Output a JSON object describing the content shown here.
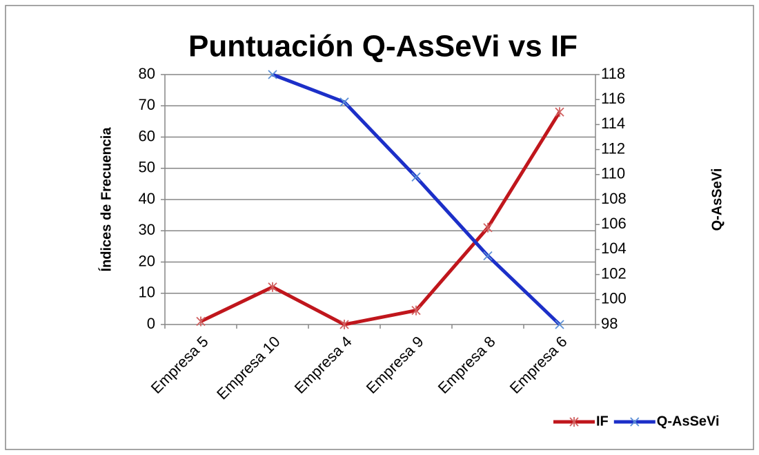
{
  "chart_data": {
    "type": "line",
    "title": "Puntuación Q-AsSeVi vs IF",
    "categories": [
      "Empresa 5",
      "Empresa 10",
      "Empresa 4",
      "Empresa 9",
      "Empresa 8",
      "Empresa 6"
    ],
    "series": [
      {
        "name": "IF",
        "color": "#c0161c",
        "values": [
          1,
          12,
          0,
          4.5,
          31,
          68
        ]
      },
      {
        "name": "Q-AsSeVi",
        "color": "#1c2fc8",
        "axis": "y2",
        "values": [
          null,
          118,
          115.8,
          109.8,
          103.5,
          98
        ]
      }
    ],
    "ylabel": "Índices de Frecuencia",
    "y2label": "Q-AsSeVi",
    "ylim": [
      0,
      80
    ],
    "yticks": [
      0,
      10,
      20,
      30,
      40,
      50,
      60,
      70,
      80
    ],
    "y2lim": [
      98,
      118
    ],
    "y2ticks": [
      98,
      100,
      102,
      104,
      106,
      108,
      110,
      112,
      114,
      116,
      118
    ],
    "grid": true,
    "legend": "bottom-right"
  }
}
